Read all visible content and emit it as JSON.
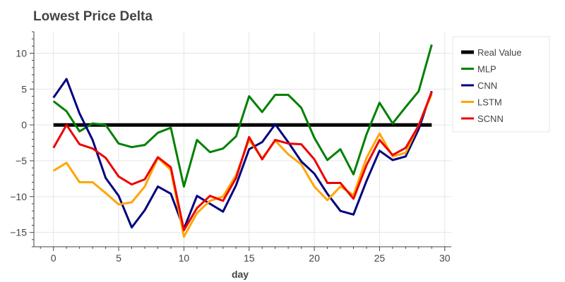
{
  "chart_data": {
    "type": "line",
    "title": "Lowest Price Delta",
    "xlabel": "day",
    "ylabel": "",
    "xlim": [
      -1.5,
      30.5
    ],
    "ylim": [
      -17,
      13
    ],
    "xticks": [
      0,
      5,
      10,
      15,
      20,
      25,
      30
    ],
    "yticks": [
      -15,
      -10,
      -5,
      0,
      5,
      10
    ],
    "grid": true,
    "legend_position": "right",
    "x": [
      0,
      1,
      2,
      3,
      4,
      5,
      6,
      7,
      8,
      9,
      10,
      11,
      12,
      13,
      14,
      15,
      16,
      17,
      18,
      19,
      20,
      21,
      22,
      23,
      24,
      25,
      26,
      27,
      28,
      29
    ],
    "series": [
      {
        "name": "Real Value",
        "color": "#000000",
        "width": 5,
        "values": [
          0,
          0,
          0,
          0,
          0,
          0,
          0,
          0,
          0,
          0,
          0,
          0,
          0,
          0,
          0,
          0,
          0,
          0,
          0,
          0,
          0,
          0,
          0,
          0,
          0,
          0,
          0,
          0,
          0,
          0
        ]
      },
      {
        "name": "MLP",
        "color": "#008000",
        "width": 3,
        "values": [
          3.3,
          1.9,
          -0.9,
          0.2,
          0.0,
          -2.6,
          -3.1,
          -2.8,
          -1.1,
          -0.4,
          -8.6,
          -2.1,
          -3.8,
          -3.3,
          -1.6,
          4.0,
          1.8,
          4.2,
          4.2,
          2.4,
          -1.8,
          -4.9,
          -3.4,
          -6.9,
          -1.3,
          3.1,
          0.2,
          2.5,
          4.7,
          11.2
        ]
      },
      {
        "name": "CNN",
        "color": "#000080",
        "width": 3,
        "values": [
          3.8,
          6.4,
          1.6,
          -2.1,
          -7.4,
          -9.9,
          -14.3,
          -11.9,
          -8.6,
          -9.6,
          -14.5,
          -9.9,
          -11.0,
          -12.1,
          -8.4,
          -3.4,
          -2.4,
          0.1,
          -2.4,
          -5.1,
          -6.8,
          -9.6,
          -12.0,
          -12.5,
          -7.8,
          -3.6,
          -4.9,
          -4.4,
          -0.6,
          4.7
        ]
      },
      {
        "name": "LSTM",
        "color": "#FFA500",
        "width": 3,
        "values": [
          -6.4,
          -5.3,
          -8.0,
          -8.0,
          -9.5,
          -11.1,
          -10.8,
          -8.6,
          -4.6,
          -6.3,
          -15.6,
          -12.3,
          -10.6,
          -10.0,
          -7.0,
          -2.1,
          -4.7,
          -2.2,
          -4.1,
          -5.5,
          -8.6,
          -10.5,
          -8.6,
          -9.8,
          -4.6,
          -1.2,
          -4.4,
          -3.9,
          0.0,
          4.3
        ]
      },
      {
        "name": "SCNN",
        "color": "#EE0000",
        "width": 3,
        "values": [
          -3.2,
          0.0,
          -2.7,
          -3.3,
          -4.6,
          -7.2,
          -8.3,
          -7.6,
          -4.5,
          -5.9,
          -14.7,
          -11.6,
          -9.9,
          -10.6,
          -7.4,
          -1.7,
          -4.8,
          -2.1,
          -2.6,
          -2.7,
          -4.8,
          -8.1,
          -8.1,
          -10.3,
          -5.6,
          -2.1,
          -4.2,
          -3.2,
          -0.1,
          4.6
        ]
      }
    ]
  }
}
